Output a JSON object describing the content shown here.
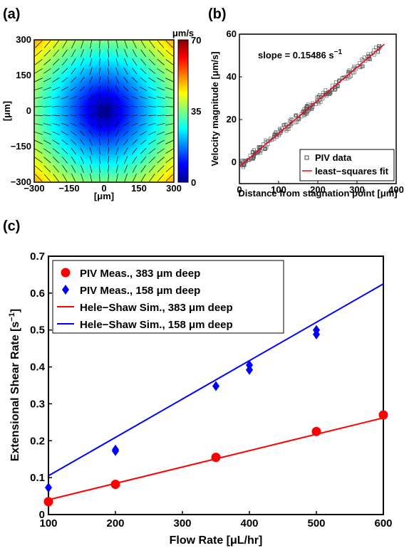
{
  "chart_data": [
    {
      "panel": "(a)",
      "type": "heatmap",
      "xlabel": "[μm]",
      "ylabel": "[μm]",
      "xlim": [
        -300,
        300
      ],
      "ylim": [
        -300,
        300
      ],
      "xticks": [
        "−300",
        "−150",
        "0",
        "150",
        "300"
      ],
      "yticks": [
        "300",
        "150",
        "0",
        "−150",
        "−300"
      ],
      "colorbar": {
        "unit": "μm/s",
        "ticks": [
          "70",
          "35",
          "0"
        ],
        "range": [
          0,
          70
        ]
      },
      "field": "extensional stagnation-point flow, vectors overlaid"
    },
    {
      "panel": "(b)",
      "type": "scatter",
      "xlabel": "Distance from stagnation point [μm]",
      "ylabel": "Velocity magnitude [μm/s]",
      "xlim": [
        0,
        400
      ],
      "ylim": [
        -10,
        60
      ],
      "xticks": [
        "0",
        "100",
        "200",
        "300",
        "400"
      ],
      "yticks": [
        "60",
        "40",
        "20",
        "0"
      ],
      "annotation": "slope = 0.15486 s",
      "annotation_sup": "−1",
      "fit": {
        "slope": 0.15486,
        "intercept": -2,
        "x_range": [
          0,
          370
        ]
      },
      "series": [
        {
          "name": "PIV data",
          "marker": "square-open",
          "color": "#444444"
        },
        {
          "name": "least−squares fit",
          "line": true,
          "color": "#e8001c"
        }
      ]
    },
    {
      "panel": "(c)",
      "type": "scatter",
      "xlabel": "Flow Rate [μL/hr]",
      "ylabel": "Extensional Shear Rate [s",
      "ylabel_sup": "−1",
      "ylabel_end": "]",
      "xlim": [
        100,
        600
      ],
      "ylim": [
        0,
        0.7
      ],
      "xticks": [
        100,
        200,
        300,
        400,
        500,
        600
      ],
      "yticks": [
        0,
        0.1,
        0.2,
        0.3,
        0.4,
        0.5,
        0.6,
        0.7
      ],
      "series": [
        {
          "name": "PIV Meas., 383 μm deep",
          "marker": "circle",
          "color": "#ff0000",
          "points": [
            [
              100,
              0.035
            ],
            [
              200,
              0.082
            ],
            [
              350,
              0.155
            ],
            [
              500,
              0.225
            ],
            [
              600,
              0.27
            ]
          ]
        },
        {
          "name": "PIV Meas., 158 μm deep",
          "marker": "diamond",
          "color": "#0000ff",
          "points": [
            [
              100,
              0.073
            ],
            [
              200,
              0.172
            ],
            [
              200,
              0.176
            ],
            [
              350,
              0.348
            ],
            [
              400,
              0.392
            ],
            [
              400,
              0.405
            ],
            [
              500,
              0.488
            ],
            [
              500,
              0.5
            ]
          ]
        },
        {
          "name": "Hele−Shaw Sim., 383 μm deep",
          "line": true,
          "color": "#ff0000",
          "points": [
            [
              100,
              0.04
            ],
            [
              600,
              0.262
            ]
          ]
        },
        {
          "name": "Hele−Shaw Sim., 158 μm deep",
          "line": true,
          "color": "#0000ff",
          "points": [
            [
              100,
              0.105
            ],
            [
              600,
              0.625
            ]
          ]
        }
      ]
    }
  ],
  "labels": {
    "a": "(a)",
    "b": "(b)",
    "c": "(c)"
  }
}
